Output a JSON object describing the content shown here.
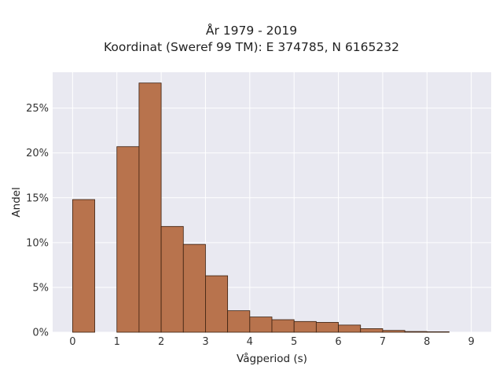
{
  "chart_data": {
    "type": "bar",
    "title": "År 1979 - 2019",
    "subtitle": "Koordinat (Sweref 99 TM): E 374785, N 6165232",
    "xlabel": "Vågperiod (s)",
    "ylabel": "Andel",
    "xlim": [
      -0.45,
      9.45
    ],
    "ylim": [
      0,
      0.29
    ],
    "xticks": [
      0,
      1,
      2,
      3,
      4,
      5,
      6,
      7,
      8,
      9
    ],
    "yticks": [
      0,
      0.05,
      0.1,
      0.15,
      0.2,
      0.25
    ],
    "ytick_labels": [
      "0%",
      "5%",
      "10%",
      "15%",
      "20%",
      "25%"
    ],
    "grid": true,
    "bar_color": "#b8734d",
    "bar_edge_color": "#3a2010",
    "background_color": "#e9e9f1",
    "bin_width": 0.5,
    "bins": [
      {
        "start": 0.0,
        "value": 0.148
      },
      {
        "start": 1.0,
        "value": 0.207
      },
      {
        "start": 1.5,
        "value": 0.278
      },
      {
        "start": 2.0,
        "value": 0.118
      },
      {
        "start": 2.5,
        "value": 0.098
      },
      {
        "start": 3.0,
        "value": 0.063
      },
      {
        "start": 3.5,
        "value": 0.024
      },
      {
        "start": 4.0,
        "value": 0.017
      },
      {
        "start": 4.5,
        "value": 0.014
      },
      {
        "start": 5.0,
        "value": 0.012
      },
      {
        "start": 5.5,
        "value": 0.011
      },
      {
        "start": 6.0,
        "value": 0.008
      },
      {
        "start": 6.5,
        "value": 0.004
      },
      {
        "start": 7.0,
        "value": 0.002
      },
      {
        "start": 7.5,
        "value": 0.0008
      },
      {
        "start": 8.0,
        "value": 0.0005
      }
    ]
  }
}
